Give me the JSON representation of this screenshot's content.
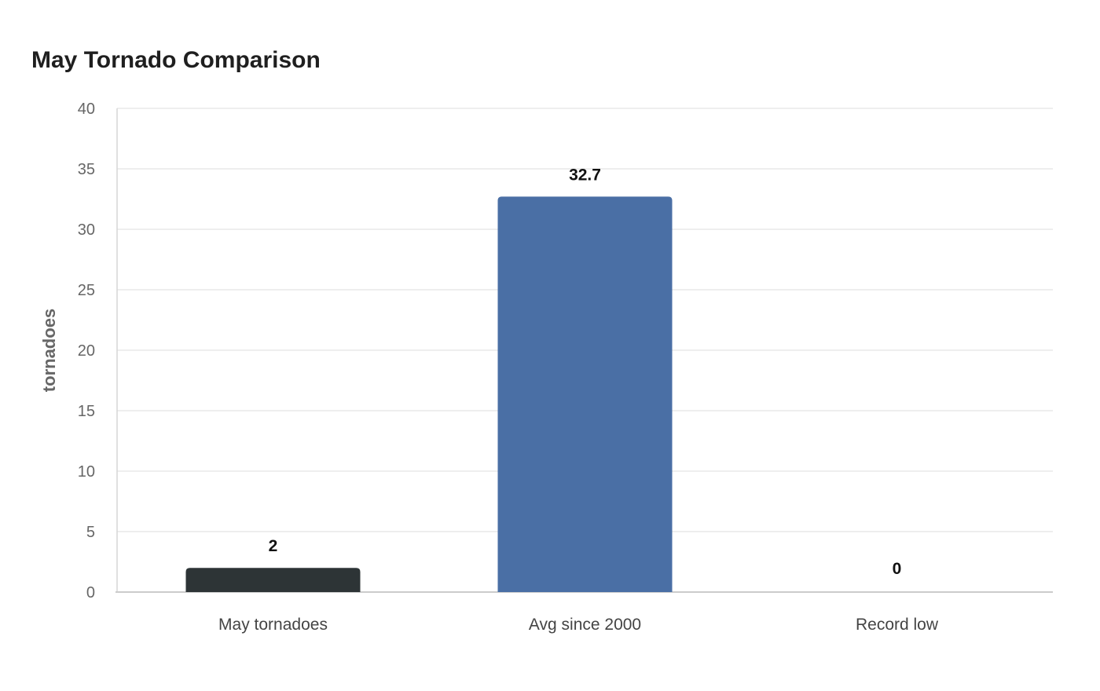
{
  "chart_data": {
    "type": "bar",
    "title": "May Tornado Comparison",
    "ylabel": "tornadoes",
    "xlabel": "",
    "categories": [
      "May tornadoes",
      "Avg since 2000",
      "Record low"
    ],
    "values": [
      2,
      32.7,
      0
    ],
    "data_labels": [
      "2",
      "32.7",
      "0"
    ],
    "colors": [
      "#2d3436",
      "#4a6fa5",
      "#4a6fa5"
    ],
    "ylim": [
      0,
      40
    ],
    "yticks": [
      0,
      5,
      10,
      15,
      20,
      25,
      30,
      35,
      40
    ],
    "grid": true,
    "legend": "none"
  }
}
